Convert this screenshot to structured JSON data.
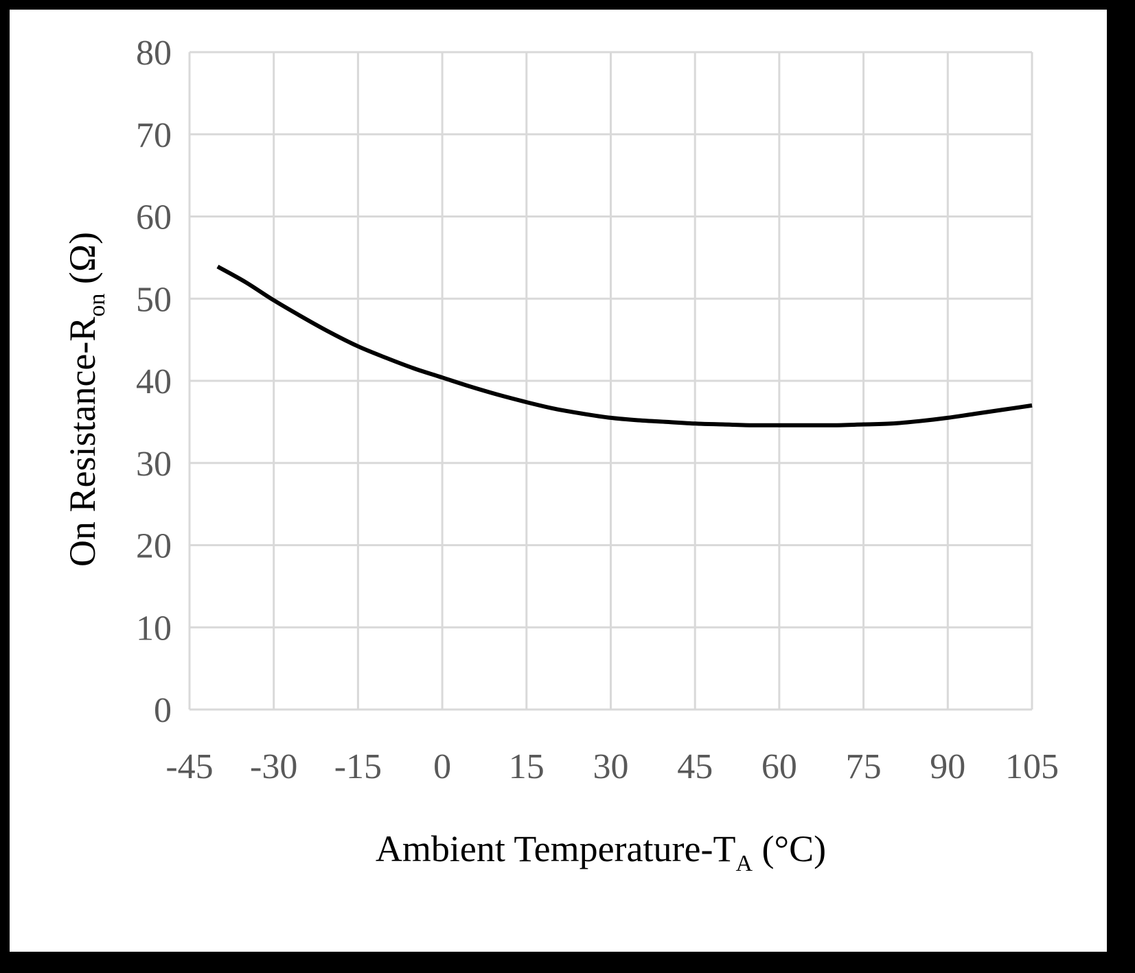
{
  "colors": {
    "outer_frame": "#000000",
    "background": "#ffffff",
    "gridline": "#d9d9d9",
    "tick_label": "#595959",
    "series_line": "#000000"
  },
  "chart_data": {
    "type": "line",
    "title": "",
    "xlabel": {
      "main": "Ambient Temperature-T",
      "sub": "A",
      "unit": " (°C)"
    },
    "ylabel": {
      "main": "On Resistance-R",
      "sub": "on",
      "unit": " (Ω)"
    },
    "xlim": [
      -45,
      105
    ],
    "ylim": [
      0,
      80
    ],
    "x_ticks": [
      -45,
      -30,
      -15,
      0,
      15,
      30,
      45,
      60,
      75,
      90,
      105
    ],
    "x_tick_labels": [
      "-45",
      "-30",
      "-15",
      "0",
      "15",
      "30",
      "45",
      "60",
      "75",
      "90",
      "105"
    ],
    "y_ticks": [
      0,
      10,
      20,
      30,
      40,
      50,
      60,
      70,
      80
    ],
    "y_tick_labels": [
      "0",
      "10",
      "20",
      "30",
      "40",
      "50",
      "60",
      "70",
      "80"
    ],
    "grid": true,
    "legend": "none",
    "series": [
      {
        "name": "Ron",
        "x": [
          -40,
          -35,
          -30,
          -25,
          -20,
          -15,
          -10,
          -5,
          0,
          5,
          10,
          15,
          20,
          25,
          30,
          35,
          40,
          45,
          50,
          55,
          60,
          65,
          70,
          75,
          80,
          85,
          90,
          95,
          100,
          105
        ],
        "values": [
          53.9,
          52.0,
          49.8,
          47.8,
          45.9,
          44.2,
          42.8,
          41.5,
          40.4,
          39.3,
          38.3,
          37.4,
          36.6,
          36.0,
          35.5,
          35.2,
          35.0,
          34.8,
          34.7,
          34.6,
          34.6,
          34.6,
          34.6,
          34.7,
          34.8,
          35.1,
          35.5,
          36.0,
          36.5,
          37.0
        ]
      }
    ]
  }
}
